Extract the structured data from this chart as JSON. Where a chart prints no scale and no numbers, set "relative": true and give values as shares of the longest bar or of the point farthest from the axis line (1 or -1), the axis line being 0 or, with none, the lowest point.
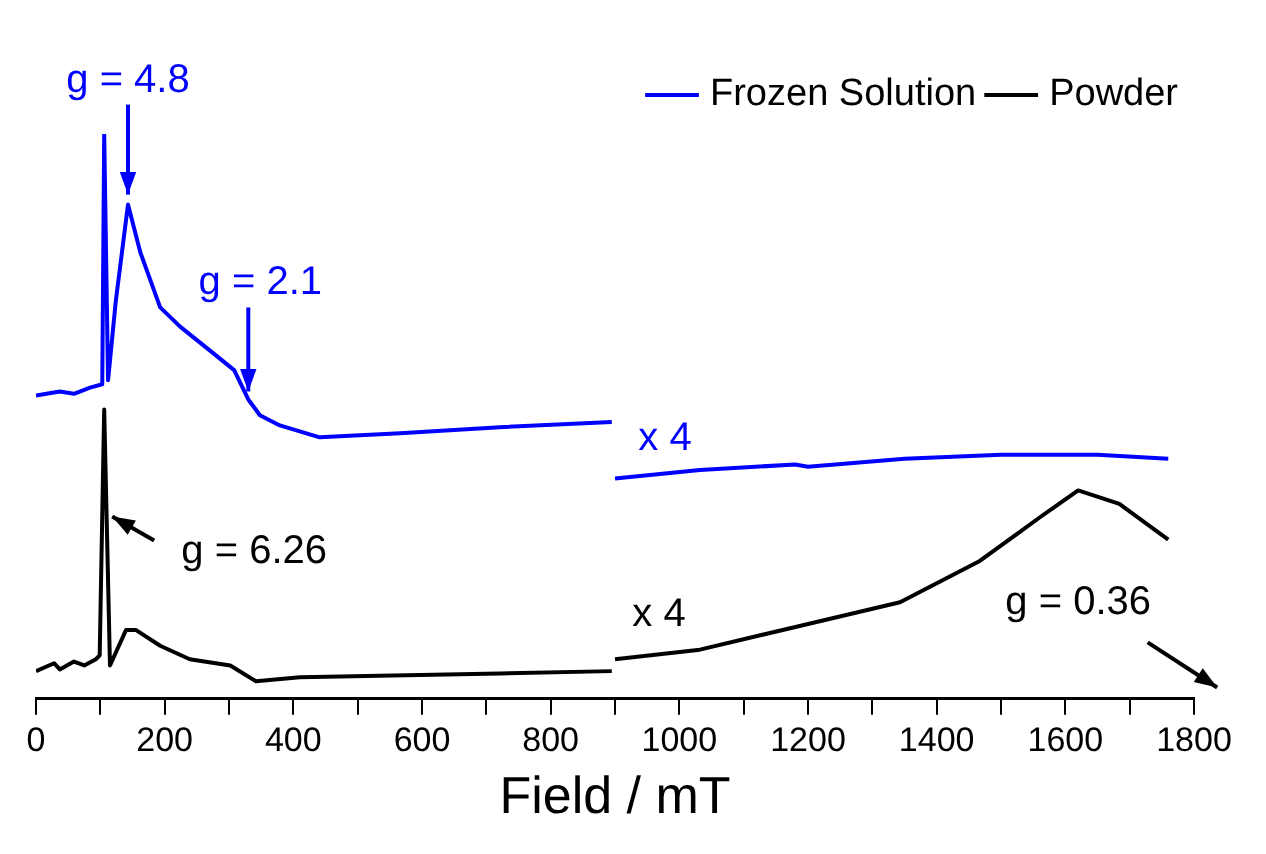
{
  "chart_data": {
    "type": "line",
    "relative": true,
    "xlabel": "Field / mT",
    "xlim": [
      0,
      1800
    ],
    "xticks": [
      0,
      {
        "value": 100,
        "label": null
      },
      200,
      {
        "value": 300,
        "label": null
      },
      400,
      {
        "value": 500,
        "label": null
      },
      600,
      {
        "value": 700,
        "label": null
      },
      800,
      {
        "value": 900,
        "label": null
      },
      1000,
      {
        "value": 1100,
        "label": null
      },
      1200,
      {
        "value": 1300,
        "label": null
      },
      1400,
      {
        "value": 1500,
        "label": null
      },
      1600,
      {
        "value": 1700,
        "label": null
      },
      1800
    ],
    "series": [
      {
        "name": "Frozen Solution",
        "color": "#0000ff",
        "x": [
          0,
          37,
          59,
          84,
          103,
          106,
          112,
          124,
          143,
          162,
          193,
          224,
          270,
          308,
          330,
          348,
          379,
          441,
          566,
          721,
          895,
          897,
          900,
          1032,
          1180,
          1200,
          1350,
          1500,
          1650,
          1760
        ],
        "values": [
          0.537,
          0.544,
          0.54,
          0.551,
          0.557,
          1.0,
          0.564,
          0.704,
          0.875,
          0.791,
          0.693,
          0.659,
          0.617,
          0.582,
          0.53,
          0.502,
          0.484,
          0.463,
          0.47,
          0.481,
          0.49,
          null,
          0.39,
          0.405,
          0.415,
          0.411,
          0.425,
          0.432,
          0.432,
          0.425
        ]
      },
      {
        "name": "Powder",
        "color": "#000000",
        "x": [
          0,
          28,
          37,
          59,
          75,
          93,
          99,
          106,
          115,
          140,
          155,
          193,
          239,
          302,
          342,
          410,
          721,
          895,
          897,
          900,
          1032,
          1187,
          1343,
          1467,
          1560,
          1620,
          1684,
          1760
        ],
        "values": [
          0.049,
          0.063,
          0.052,
          0.066,
          0.059,
          0.07,
          0.077,
          0.512,
          0.059,
          0.122,
          0.122,
          0.094,
          0.07,
          0.059,
          0.031,
          0.038,
          0.045,
          0.049,
          null,
          0.07,
          0.087,
          0.129,
          0.171,
          0.244,
          0.321,
          0.369,
          0.345,
          0.282
        ]
      }
    ],
    "annotations": [
      {
        "text": "g = 4.8",
        "x": 143,
        "y": 0.875
      },
      {
        "text": "g = 2.1",
        "x": 330,
        "y": 0.53
      },
      {
        "text": "g = 6.26",
        "x": 106,
        "y": 0.33
      },
      {
        "text": "x 4",
        "x": 900,
        "y": 0.39
      },
      {
        "text": "x 4",
        "x": 900,
        "y": 0.07
      },
      "g = 0.36"
    ],
    "legend": "top right",
    "grid": false,
    "marker": "none",
    "line_style": "solid"
  }
}
